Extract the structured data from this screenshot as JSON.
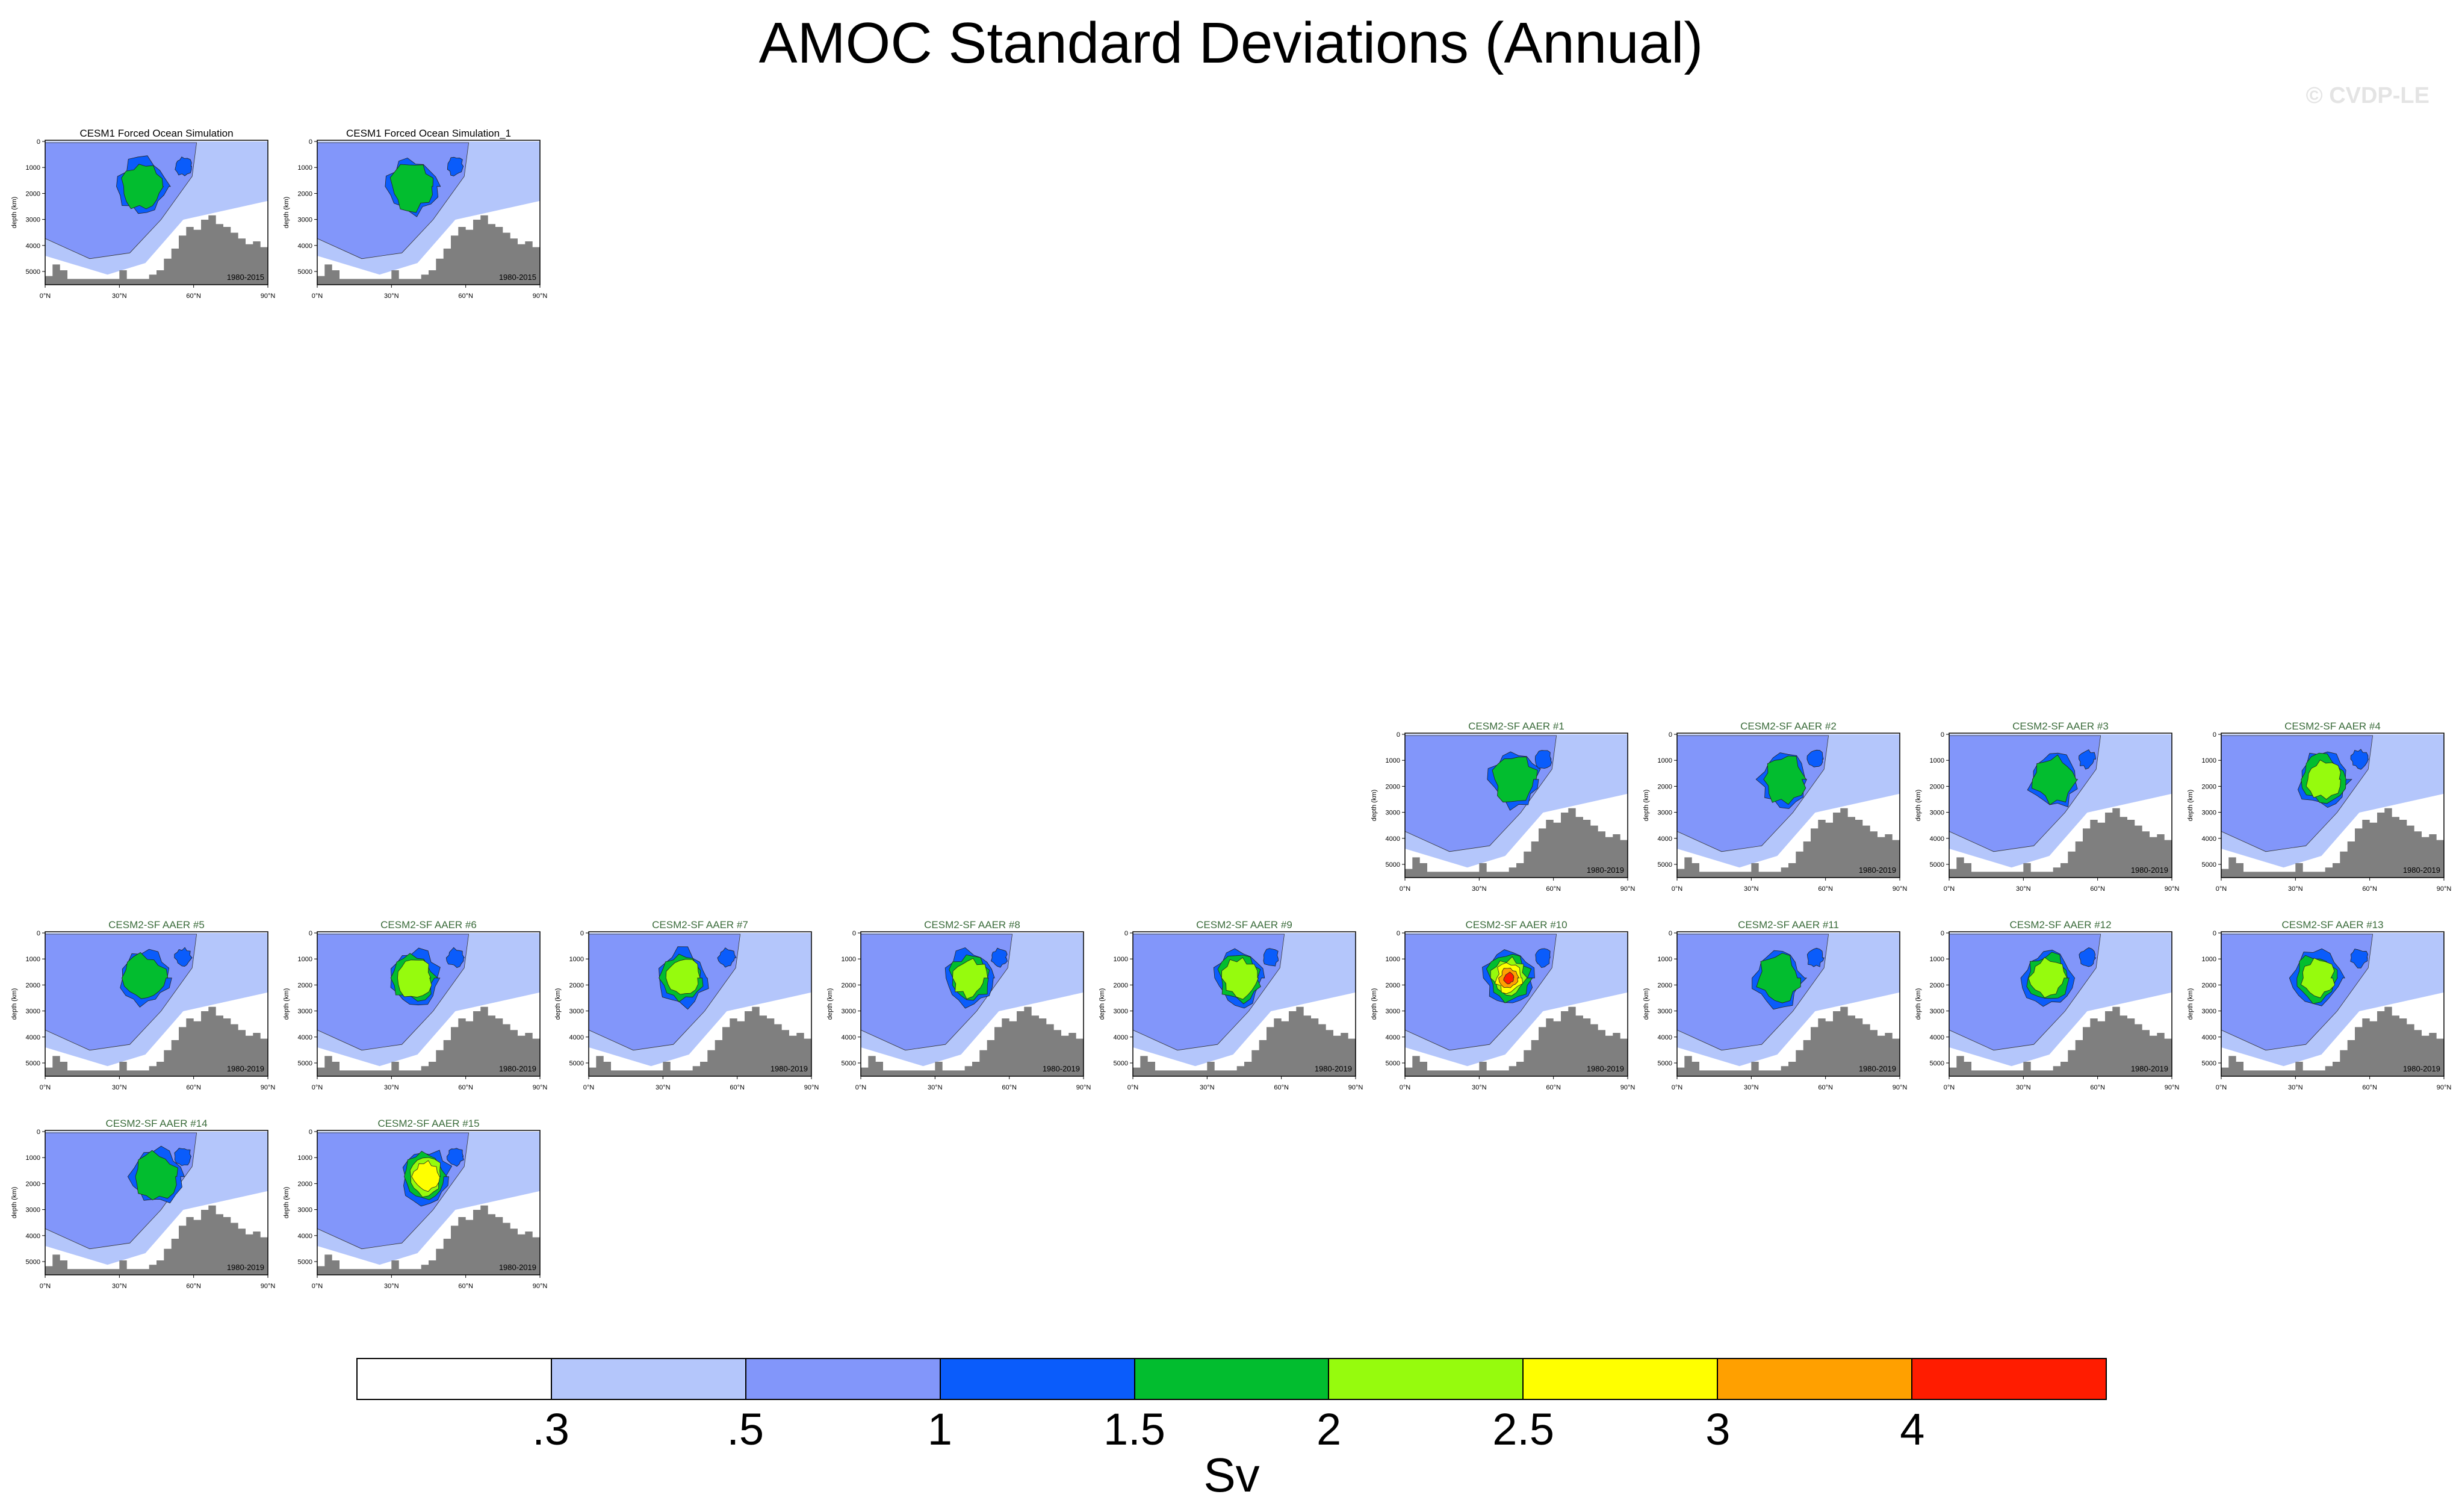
{
  "title": "AMOC Standard Deviations (Annual)",
  "watermark": "© CVDP-LE",
  "colors": {
    "levels": [
      "#ffffff",
      "#b4c6fb",
      "#8296fa",
      "#0a5cfb",
      "#02bd2f",
      "#96fb0d",
      "#ffff00",
      "#ffa000",
      "#ff1c00"
    ],
    "panel_title_obs": "#000000",
    "panel_title_model": "#3a6b3a",
    "land": "#7f7f7f"
  },
  "chart_data": {
    "type": "contour",
    "units": "Sv",
    "levels": [
      ".3",
      ".5",
      "1",
      "1.5",
      "2",
      "2.5",
      "3",
      "4"
    ],
    "x_ticks": [
      "0°N",
      "30°N",
      "60°N",
      "90°N"
    ],
    "y_ticks": [
      "0",
      "1000",
      "2000",
      "3000",
      "4000",
      "5000"
    ],
    "ylabel": "depth (km)",
    "panels": [
      {
        "title": "CESM1 Forced Ocean Simulation",
        "period": "1980-2015",
        "max_level": 4,
        "kind": "obs"
      },
      {
        "title": "CESM1 Forced Ocean Simulation_1",
        "period": "1980-2015",
        "max_level": 4,
        "kind": "obs"
      },
      {
        "title": "CESM2-SF AAER #1",
        "period": "1980-2019",
        "max_level": 4,
        "kind": "model"
      },
      {
        "title": "CESM2-SF AAER #2",
        "period": "1980-2019",
        "max_level": 4,
        "kind": "model"
      },
      {
        "title": "CESM2-SF AAER #3",
        "period": "1980-2019",
        "max_level": 4,
        "kind": "model"
      },
      {
        "title": "CESM2-SF AAER #4",
        "period": "1980-2019",
        "max_level": 5,
        "kind": "model"
      },
      {
        "title": "CESM2-SF AAER #5",
        "period": "1980-2019",
        "max_level": 4,
        "kind": "model"
      },
      {
        "title": "CESM2-SF AAER #6",
        "period": "1980-2019",
        "max_level": 5,
        "kind": "model"
      },
      {
        "title": "CESM2-SF AAER #7",
        "period": "1980-2019",
        "max_level": 5,
        "kind": "model"
      },
      {
        "title": "CESM2-SF AAER #8",
        "period": "1980-2019",
        "max_level": 5,
        "kind": "model"
      },
      {
        "title": "CESM2-SF AAER #9",
        "period": "1980-2019",
        "max_level": 5,
        "kind": "model"
      },
      {
        "title": "CESM2-SF AAER #10",
        "period": "1980-2019",
        "max_level": 8,
        "kind": "model"
      },
      {
        "title": "CESM2-SF AAER #11",
        "period": "1980-2019",
        "max_level": 4,
        "kind": "model"
      },
      {
        "title": "CESM2-SF AAER #12",
        "period": "1980-2019",
        "max_level": 5,
        "kind": "model"
      },
      {
        "title": "CESM2-SF AAER #13",
        "period": "1980-2019",
        "max_level": 5,
        "kind": "model"
      },
      {
        "title": "CESM2-SF AAER #14",
        "period": "1980-2019",
        "max_level": 4,
        "kind": "model"
      },
      {
        "title": "CESM2-SF AAER #15",
        "period": "1980-2019",
        "max_level": 6,
        "kind": "model"
      }
    ]
  }
}
